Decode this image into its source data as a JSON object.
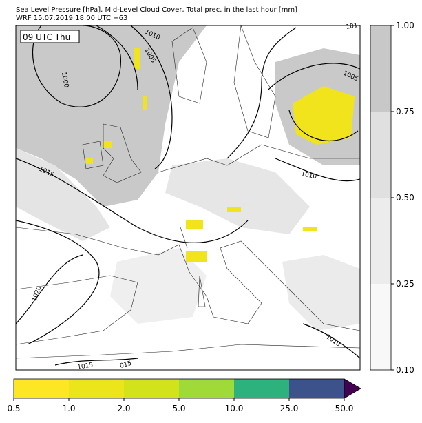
{
  "header": {
    "title": "Sea Level Pressure [hPa], Mid-Level Cloud Cover, Total prec. in the last hour [mm]",
    "subtitle": "WRF 15.07.2019 18:00 UTC +63"
  },
  "map": {
    "time_label": "09 UTC Thu",
    "contour_labels": [
      {
        "text": "1010"
      },
      {
        "text": "1005"
      },
      {
        "text": "1000"
      },
      {
        "text": "1015"
      },
      {
        "text": "1010"
      },
      {
        "text": "1005"
      },
      {
        "text": "1020"
      },
      {
        "text": "1010"
      },
      {
        "text": "1015"
      },
      {
        "text": "015"
      },
      {
        "text": "101"
      }
    ]
  },
  "cloud_colorbar": {
    "ticks": [
      "0.10",
      "0.25",
      "0.50",
      "0.75",
      "1.00"
    ]
  },
  "precip_colorbar": {
    "ticks": [
      "0.5",
      "1.0",
      "2.0",
      "5.0",
      "10.0",
      "25.0",
      "50.0"
    ]
  }
}
